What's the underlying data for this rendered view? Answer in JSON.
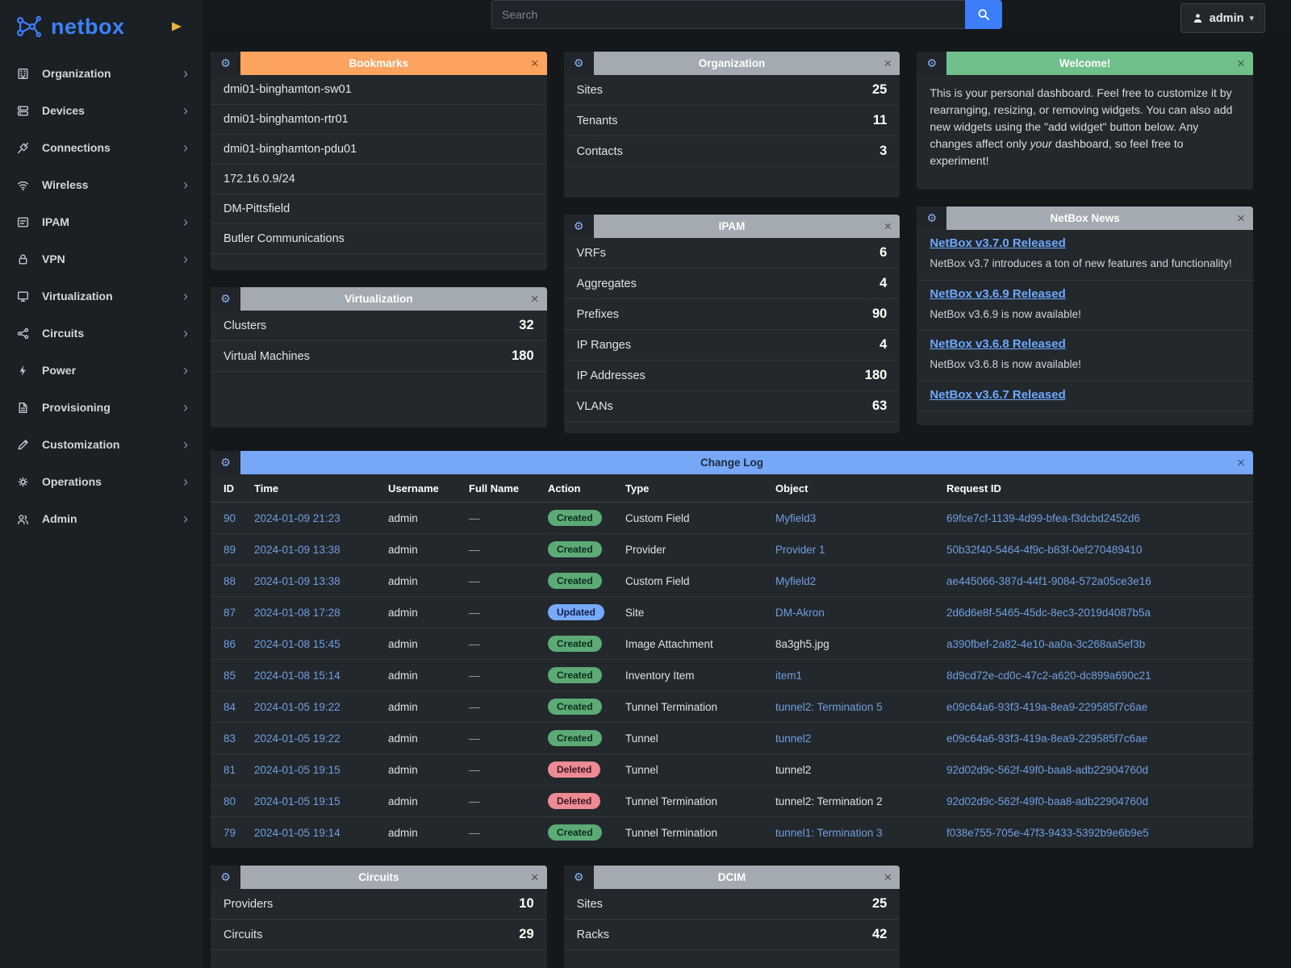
{
  "brand": {
    "name": "netbox"
  },
  "topbar": {
    "search_placeholder": "Search",
    "user": "admin"
  },
  "sidebar": {
    "items": [
      {
        "label": "Organization",
        "icon": "building-icon"
      },
      {
        "label": "Devices",
        "icon": "devices-icon"
      },
      {
        "label": "Connections",
        "icon": "connections-icon"
      },
      {
        "label": "Wireless",
        "icon": "wifi-icon"
      },
      {
        "label": "IPAM",
        "icon": "ipam-icon"
      },
      {
        "label": "VPN",
        "icon": "lock-icon"
      },
      {
        "label": "Virtualization",
        "icon": "monitor-icon"
      },
      {
        "label": "Circuits",
        "icon": "share-icon"
      },
      {
        "label": "Power",
        "icon": "bolt-icon"
      },
      {
        "label": "Provisioning",
        "icon": "document-icon"
      },
      {
        "label": "Customization",
        "icon": "pencil-icon"
      },
      {
        "label": "Operations",
        "icon": "gear-icon"
      },
      {
        "label": "Admin",
        "icon": "users-icon"
      }
    ]
  },
  "colors": {
    "accent": "#3d7ef8",
    "link": "#6f9fe0",
    "news_link": "#6ea8fe",
    "actions": {
      "Created": {
        "bg": "#5cab77",
        "fg": "#0c2d1b"
      },
      "Updated": {
        "bg": "#79a9f9",
        "fg": "#0d2149"
      },
      "Deleted": {
        "bg": "#ec8b94",
        "fg": "#40151a"
      }
    }
  },
  "widgets": {
    "bookmarks": {
      "title": "Bookmarks",
      "color": "#fca45f",
      "text_color": "#ffffff",
      "items": [
        "dmi01-binghamton-sw01",
        "dmi01-binghamton-rtr01",
        "dmi01-binghamton-pdu01",
        "172.16.0.9/24",
        "DM-Pittsfield",
        "Butler Communications"
      ]
    },
    "organization": {
      "title": "Organization",
      "color": "#a3aab1",
      "text_color": "#ffffff",
      "stats": [
        {
          "label": "Sites",
          "value": "25"
        },
        {
          "label": "Tenants",
          "value": "11"
        },
        {
          "label": "Contacts",
          "value": "3"
        }
      ]
    },
    "welcome": {
      "title": "Welcome!",
      "color": "#70c08b",
      "text_color": "#ffffff",
      "text_before": "This is your personal dashboard. Feel free to customize it by rearranging, resizing, or removing widgets. You can also add new widgets using the \"add widget\" button below. Any changes affect only ",
      "text_italic": "your",
      "text_after": " dashboard, so feel free to experiment!"
    },
    "virtualization": {
      "title": "Virtualization",
      "color": "#a3aab1",
      "text_color": "#ffffff",
      "stats": [
        {
          "label": "Clusters",
          "value": "32"
        },
        {
          "label": "Virtual Machines",
          "value": "180"
        }
      ]
    },
    "ipam": {
      "title": "IPAM",
      "color": "#a3aab1",
      "text_color": "#ffffff",
      "stats": [
        {
          "label": "VRFs",
          "value": "6"
        },
        {
          "label": "Aggregates",
          "value": "4"
        },
        {
          "label": "Prefixes",
          "value": "90"
        },
        {
          "label": "IP Ranges",
          "value": "4"
        },
        {
          "label": "IP Addresses",
          "value": "180"
        },
        {
          "label": "VLANs",
          "value": "63"
        }
      ]
    },
    "news": {
      "title": "NetBox News",
      "color": "#a3aab1",
      "text_color": "#ffffff",
      "items": [
        {
          "title": "NetBox v3.7.0 Released",
          "text": "NetBox v3.7 introduces a ton of new features and functionality!"
        },
        {
          "title": "NetBox v3.6.9 Released",
          "text": "NetBox v3.6.9 is now available!"
        },
        {
          "title": "NetBox v3.6.8 Released",
          "text": "NetBox v3.6.8 is now available!"
        },
        {
          "title": "NetBox v3.6.7 Released",
          "text": ""
        }
      ]
    },
    "changelog": {
      "title": "Change Log",
      "color": "#77a7f7",
      "text_color": "#1d2b40",
      "columns": [
        "ID",
        "Time",
        "Username",
        "Full Name",
        "Action",
        "Type",
        "Object",
        "Request ID"
      ],
      "rows": [
        {
          "id": "90",
          "time": "2024-01-09 21:23",
          "username": "admin",
          "full_name": "—",
          "action": "Created",
          "type": "Custom Field",
          "object": "Myfield3",
          "object_link": true,
          "request_id": "69fce7cf-1139-4d99-bfea-f3dcbd2452d6"
        },
        {
          "id": "89",
          "time": "2024-01-09 13:38",
          "username": "admin",
          "full_name": "—",
          "action": "Created",
          "type": "Provider",
          "object": "Provider 1",
          "object_link": true,
          "request_id": "50b32f40-5464-4f9c-b83f-0ef270489410"
        },
        {
          "id": "88",
          "time": "2024-01-09 13:38",
          "username": "admin",
          "full_name": "—",
          "action": "Created",
          "type": "Custom Field",
          "object": "Myfield2",
          "object_link": true,
          "request_id": "ae445066-387d-44f1-9084-572a05ce3e16"
        },
        {
          "id": "87",
          "time": "2024-01-08 17:28",
          "username": "admin",
          "full_name": "—",
          "action": "Updated",
          "type": "Site",
          "object": "DM-Akron",
          "object_link": true,
          "request_id": "2d6d6e8f-5465-45dc-8ec3-2019d4087b5a"
        },
        {
          "id": "86",
          "time": "2024-01-08 15:45",
          "username": "admin",
          "full_name": "—",
          "action": "Created",
          "type": "Image Attachment",
          "object": "8a3gh5.jpg",
          "object_link": false,
          "request_id": "a390fbef-2a82-4e10-aa0a-3c268aa5ef3b"
        },
        {
          "id": "85",
          "time": "2024-01-08 15:14",
          "username": "admin",
          "full_name": "—",
          "action": "Created",
          "type": "Inventory Item",
          "object": "item1",
          "object_link": true,
          "request_id": "8d9cd72e-cd0c-47c2-a620-dc899a690c21"
        },
        {
          "id": "84",
          "time": "2024-01-05 19:22",
          "username": "admin",
          "full_name": "—",
          "action": "Created",
          "type": "Tunnel Termination",
          "object": "tunnel2: Termination 5",
          "object_link": true,
          "request_id": "e09c64a6-93f3-419a-8ea9-229585f7c6ae"
        },
        {
          "id": "83",
          "time": "2024-01-05 19:22",
          "username": "admin",
          "full_name": "—",
          "action": "Created",
          "type": "Tunnel",
          "object": "tunnel2",
          "object_link": true,
          "request_id": "e09c64a6-93f3-419a-8ea9-229585f7c6ae"
        },
        {
          "id": "81",
          "time": "2024-01-05 19:15",
          "username": "admin",
          "full_name": "—",
          "action": "Deleted",
          "type": "Tunnel",
          "object": "tunnel2",
          "object_link": false,
          "request_id": "92d02d9c-562f-49f0-baa8-adb22904760d"
        },
        {
          "id": "80",
          "time": "2024-01-05 19:15",
          "username": "admin",
          "full_name": "—",
          "action": "Deleted",
          "type": "Tunnel Termination",
          "object": "tunnel2: Termination 2",
          "object_link": false,
          "request_id": "92d02d9c-562f-49f0-baa8-adb22904760d"
        },
        {
          "id": "79",
          "time": "2024-01-05 19:14",
          "username": "admin",
          "full_name": "—",
          "action": "Created",
          "type": "Tunnel Termination",
          "object": "tunnel1: Termination 3",
          "object_link": true,
          "request_id": "f038e755-705e-47f3-9433-5392b9e6b9e5"
        }
      ]
    },
    "circuits": {
      "title": "Circuits",
      "color": "#a3aab1",
      "text_color": "#ffffff",
      "stats": [
        {
          "label": "Providers",
          "value": "10"
        },
        {
          "label": "Circuits",
          "value": "29"
        }
      ]
    },
    "dcim": {
      "title": "DCIM",
      "color": "#a3aab1",
      "text_color": "#ffffff",
      "stats": [
        {
          "label": "Sites",
          "value": "25"
        },
        {
          "label": "Racks",
          "value": "42"
        }
      ]
    }
  }
}
